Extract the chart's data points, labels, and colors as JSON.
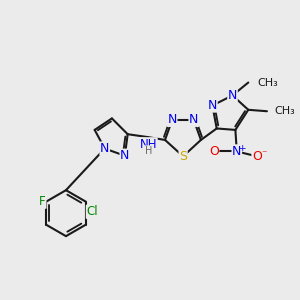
{
  "bg_color": "#ebebeb",
  "bond_color": "#1a1a1a",
  "bond_lw": 1.5,
  "atom_colors": {
    "N": "#0000ee",
    "S": "#ccaa00",
    "O": "#ee0000",
    "F": "#008800",
    "Cl": "#008800",
    "H": "#666666",
    "C": "#1a1a1a"
  },
  "font_size": 8.5,
  "fig_size": [
    3.0,
    3.0
  ],
  "dpi": 100,
  "xlim": [
    0,
    10
  ],
  "ylim": [
    0,
    10
  ]
}
